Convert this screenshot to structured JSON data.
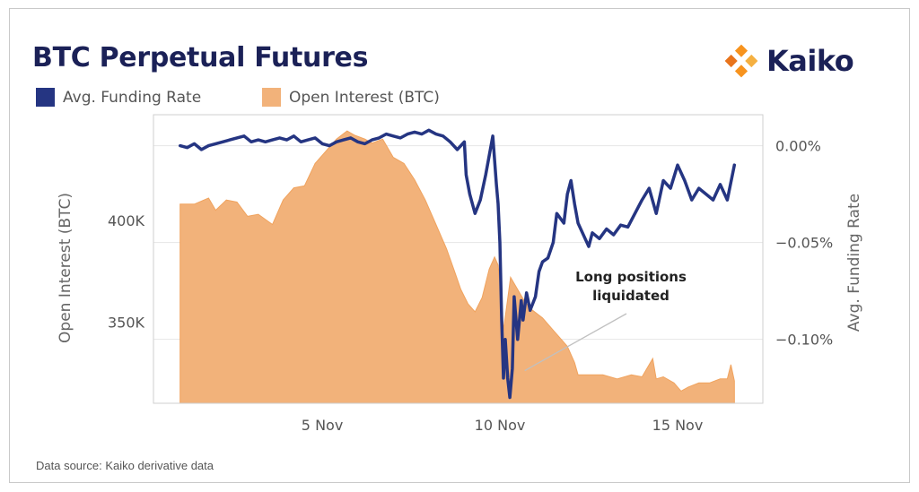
{
  "title": "BTC Perpetual Futures",
  "logo": {
    "text": "Kaiko",
    "colors": [
      "#f7931e",
      "#f5b041",
      "#e8741c"
    ]
  },
  "source": "Data source: Kaiko derivative data",
  "colors": {
    "funding": "#253582",
    "oi_fill": "#f2b27a",
    "oi_line": "#f0a35e",
    "grid": "#e6e6e6",
    "frame": "#cfcfcf",
    "annot_line": "#c0c0c0"
  },
  "chart_data": {
    "type": "area",
    "legend": [
      "Avg. Funding Rate",
      "Open Interest (BTC)"
    ],
    "legend_position": "top-left",
    "xlabel": "",
    "x_ticks": [
      {
        "label": "5 Nov",
        "day": 5
      },
      {
        "label": "10 Nov",
        "day": 10
      },
      {
        "label": "15 Nov",
        "day": 15
      }
    ],
    "xlim": [
      0.25,
      17.4
    ],
    "y_left": {
      "label": "Open Interest (BTC)",
      "range": [
        310000,
        452000
      ],
      "ticks": [
        {
          "value": 350000,
          "label": "350K"
        },
        {
          "value": 400000,
          "label": "400K"
        }
      ]
    },
    "y_right": {
      "label": "Avg. Funding Rate",
      "range": [
        -0.133,
        0.016
      ],
      "ticks": [
        {
          "value": 0.0,
          "label": "0.00%"
        },
        {
          "value": -0.05,
          "label": "−0.05%"
        },
        {
          "value": -0.1,
          "label": "−0.10%"
        }
      ]
    },
    "grid": true,
    "annotation": {
      "lines": [
        "Long positions",
        "liquidated"
      ],
      "day": 10.7,
      "funding": -0.118
    },
    "series": [
      {
        "name": "Open Interest (BTC)",
        "axis": "left",
        "x": [
          1.0,
          1.4,
          1.8,
          2.0,
          2.3,
          2.6,
          2.9,
          3.2,
          3.6,
          3.9,
          4.2,
          4.5,
          4.8,
          5.1,
          5.4,
          5.7,
          5.9,
          6.2,
          6.4,
          6.7,
          7.0,
          7.3,
          7.6,
          7.9,
          8.2,
          8.5,
          8.7,
          8.9,
          9.1,
          9.3,
          9.5,
          9.7,
          9.85,
          9.95,
          10.05,
          10.1,
          10.3,
          10.5,
          10.7,
          10.9,
          11.2,
          11.5,
          11.9,
          12.1,
          12.2,
          12.5,
          12.9,
          13.3,
          13.7,
          14.0,
          14.3,
          14.4,
          14.6,
          14.9,
          15.1,
          15.3,
          15.6,
          15.9,
          16.2,
          16.4,
          16.5,
          16.6
        ],
        "values": [
          408000,
          408000,
          411000,
          405000,
          410000,
          409000,
          402000,
          403000,
          398000,
          410000,
          416000,
          417000,
          428000,
          434000,
          440000,
          444000,
          442000,
          440000,
          438000,
          440000,
          431000,
          428000,
          420000,
          410000,
          398000,
          386000,
          376000,
          366000,
          359000,
          355000,
          362000,
          376000,
          382000,
          378000,
          360000,
          346000,
          372000,
          366000,
          360000,
          356000,
          352000,
          346000,
          338000,
          330000,
          324000,
          324000,
          324000,
          322000,
          324000,
          323000,
          332000,
          322000,
          323000,
          320000,
          316000,
          318000,
          320000,
          320000,
          322000,
          322000,
          329000,
          321000
        ]
      },
      {
        "name": "Avg. Funding Rate",
        "axis": "right",
        "x": [
          1.0,
          1.2,
          1.4,
          1.6,
          1.8,
          2.0,
          2.2,
          2.4,
          2.6,
          2.8,
          3.0,
          3.2,
          3.4,
          3.6,
          3.8,
          4.0,
          4.2,
          4.4,
          4.6,
          4.8,
          5.0,
          5.2,
          5.4,
          5.6,
          5.8,
          6.0,
          6.2,
          6.4,
          6.6,
          6.8,
          7.0,
          7.2,
          7.4,
          7.6,
          7.8,
          8.0,
          8.2,
          8.4,
          8.6,
          8.8,
          9.0,
          9.05,
          9.15,
          9.3,
          9.45,
          9.6,
          9.8,
          9.9,
          9.95,
          10.0,
          10.05,
          10.1,
          10.15,
          10.22,
          10.28,
          10.35,
          10.4,
          10.5,
          10.6,
          10.65,
          10.75,
          10.85,
          11.0,
          11.1,
          11.2,
          11.35,
          11.5,
          11.6,
          11.8,
          11.9,
          12.0,
          12.1,
          12.2,
          12.4,
          12.5,
          12.6,
          12.8,
          13.0,
          13.2,
          13.4,
          13.6,
          13.8,
          14.0,
          14.2,
          14.4,
          14.6,
          14.8,
          15.0,
          15.2,
          15.4,
          15.6,
          15.8,
          16.0,
          16.2,
          16.4,
          16.6
        ],
        "values": [
          0.0,
          -0.001,
          0.001,
          -0.002,
          0.0,
          0.001,
          0.002,
          0.003,
          0.004,
          0.005,
          0.002,
          0.003,
          0.002,
          0.003,
          0.004,
          0.003,
          0.005,
          0.002,
          0.003,
          0.004,
          0.001,
          0.0,
          0.002,
          0.003,
          0.004,
          0.002,
          0.001,
          0.003,
          0.004,
          0.006,
          0.005,
          0.004,
          0.006,
          0.007,
          0.006,
          0.008,
          0.006,
          0.005,
          0.002,
          -0.002,
          0.002,
          -0.015,
          -0.025,
          -0.035,
          -0.028,
          -0.015,
          0.005,
          -0.02,
          -0.03,
          -0.05,
          -0.09,
          -0.12,
          -0.1,
          -0.12,
          -0.13,
          -0.115,
          -0.078,
          -0.1,
          -0.08,
          -0.09,
          -0.076,
          -0.085,
          -0.078,
          -0.065,
          -0.06,
          -0.058,
          -0.05,
          -0.035,
          -0.04,
          -0.025,
          -0.018,
          -0.03,
          -0.04,
          -0.048,
          -0.052,
          -0.045,
          -0.048,
          -0.043,
          -0.046,
          -0.041,
          -0.042,
          -0.035,
          -0.028,
          -0.022,
          -0.035,
          -0.018,
          -0.022,
          -0.01,
          -0.018,
          -0.028,
          -0.022,
          -0.025,
          -0.028,
          -0.02,
          -0.028,
          -0.01
        ]
      }
    ]
  }
}
